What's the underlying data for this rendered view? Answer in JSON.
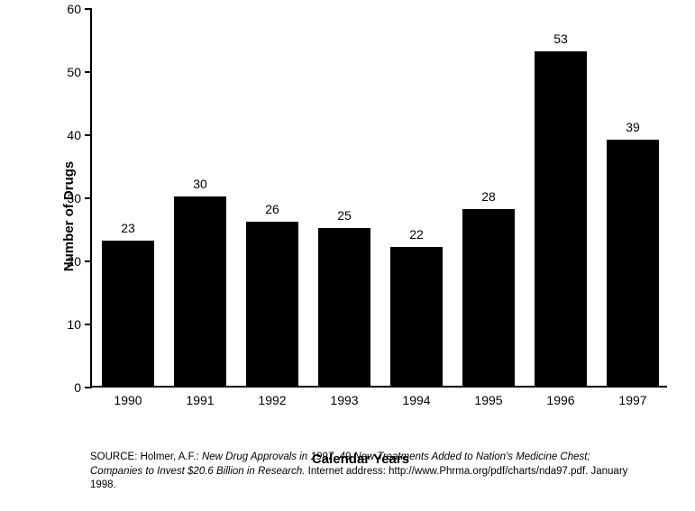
{
  "chart": {
    "type": "bar",
    "ylabel": "Number of Drugs",
    "xlabel": "Calendar Years",
    "ylim": [
      0,
      60
    ],
    "ytick_step": 10,
    "yticks": [
      0,
      10,
      20,
      30,
      40,
      50,
      60
    ],
    "categories": [
      "1990",
      "1991",
      "1992",
      "1993",
      "1994",
      "1995",
      "1996",
      "1997"
    ],
    "values": [
      23,
      30,
      26,
      25,
      22,
      28,
      53,
      39
    ],
    "bar_color": "#000000",
    "bar_width": 0.72,
    "background_color": "#ffffff",
    "axis_color": "#000000",
    "label_fontsize": 15,
    "tick_fontsize": 14,
    "value_label_fontsize": 14
  },
  "source": {
    "prefix": "SOURCE:  Holmer, A.F.: ",
    "italic": "New Drug Approvals in 1997, 49 New Treatments Added to Nation's Medicine Chest; Companies to Invest $20.6 Billion in Research.",
    "suffix": " Internet address: http://www.Phrma.org/pdf/charts/nda97.pdf. January 1998."
  }
}
